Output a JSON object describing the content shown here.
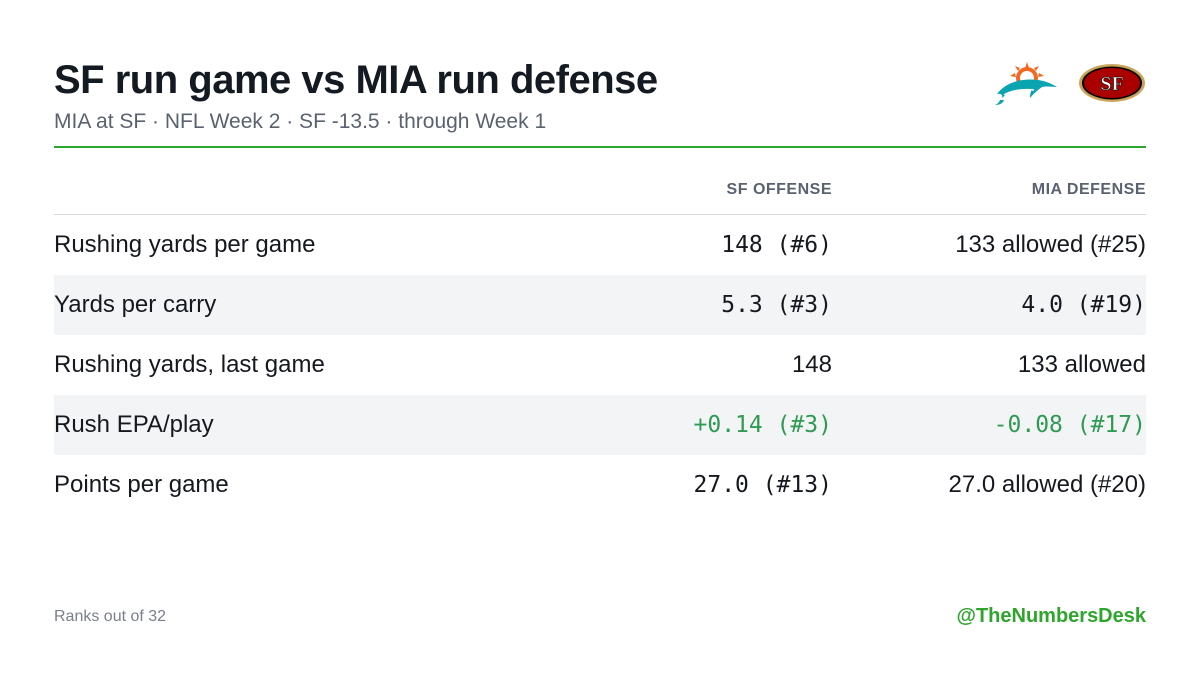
{
  "header": {
    "title": "SF run game vs MIA run defense",
    "subtitle": "MIA at SF · NFL Week 2 · SF -13.5 · through Week 1"
  },
  "logos": [
    {
      "name": "dolphins-logo",
      "team": "MIA"
    },
    {
      "name": "49ers-logo",
      "team": "SF",
      "text": "SF"
    }
  ],
  "colors": {
    "accent": "#2ea52b",
    "positive_value": "#2f9a52",
    "row_shade": "#f3f4f6",
    "dolphins_aqua": "#0aa3b0",
    "dolphins_orange": "#f26a21",
    "niners_red": "#aa0000",
    "niners_gold": "#c9a35a"
  },
  "chart_data": {
    "type": "table",
    "columns": [
      "",
      "SF OFFENSE",
      "MIA DEFENSE"
    ],
    "rows": [
      {
        "metric": "Rushing yards per game",
        "sf": "148 (#6)",
        "mia": "133 allowed (#25)",
        "sf_mono": true,
        "mia_mono": false,
        "highlight": false
      },
      {
        "metric": "Yards per carry",
        "sf": "5.3 (#3)",
        "mia": "4.0 (#19)",
        "sf_mono": true,
        "mia_mono": true,
        "highlight": false
      },
      {
        "metric": "Rushing yards, last game",
        "sf": "148",
        "mia": "133 allowed",
        "sf_mono": false,
        "mia_mono": false,
        "highlight": false
      },
      {
        "metric": "Rush EPA/play",
        "sf": "+0.14 (#3)",
        "mia": "-0.08 (#17)",
        "sf_mono": true,
        "mia_mono": true,
        "highlight": true
      },
      {
        "metric": "Points per game",
        "sf": "27.0 (#13)",
        "mia": "27.0 allowed (#20)",
        "sf_mono": true,
        "mia_mono": false,
        "highlight": false
      }
    ]
  },
  "footer": {
    "note": "Ranks out of 32",
    "handle": "@TheNumbersDesk"
  }
}
